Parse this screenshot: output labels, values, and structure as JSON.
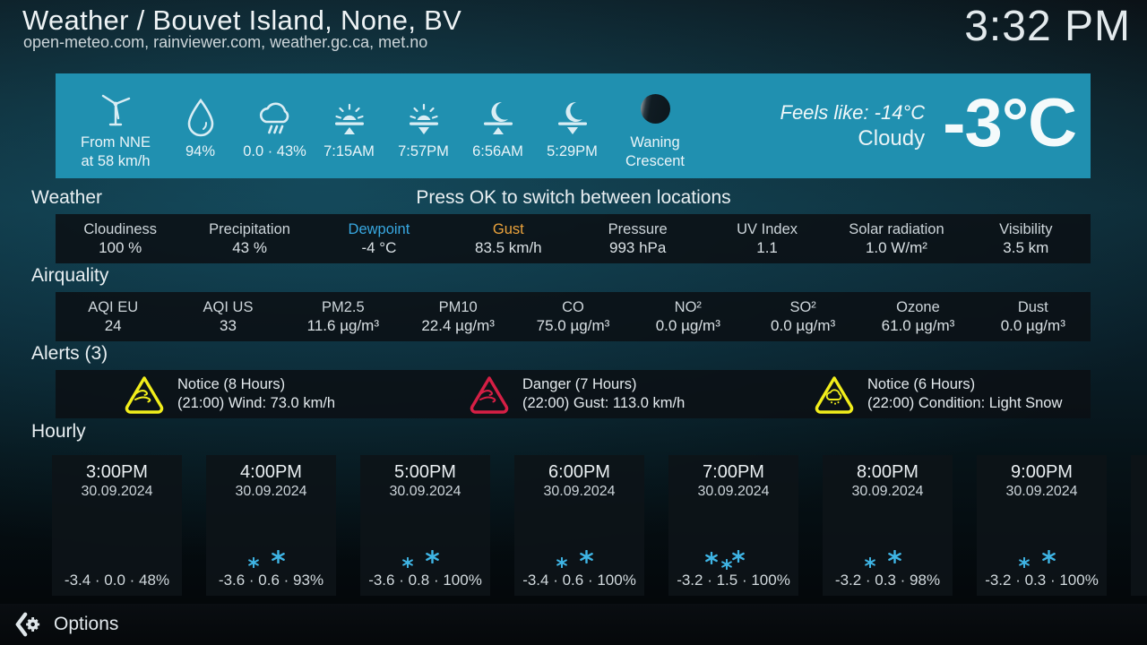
{
  "header": {
    "title": "Weather / Bouvet Island, None, BV",
    "subtitle": "open-meteo.com, rainviewer.com, weather.gc.ca, met.no",
    "clock": "3:32 PM"
  },
  "current": {
    "items": [
      {
        "icon": "wind-turbine-icon",
        "label": "From NNE\nat 58 km/h",
        "wide": true
      },
      {
        "icon": "humidity-drop-icon",
        "label": "94%"
      },
      {
        "icon": "rain-cloud-icon",
        "label": "0.0 · 43%"
      },
      {
        "icon": "sunrise-icon",
        "label": "7:15AM"
      },
      {
        "icon": "sunset-icon",
        "label": "7:57PM"
      },
      {
        "icon": "moonrise-icon",
        "label": "6:56AM"
      },
      {
        "icon": "moonset-icon",
        "label": "5:29PM"
      },
      {
        "icon": "moon-phase-icon",
        "label": "Waning\nCrescent",
        "moon": true
      }
    ],
    "feels_like": "Feels like: -14°C",
    "condition": "Cloudy",
    "temperature": "-3°C"
  },
  "weather_section": {
    "heading": "Weather",
    "hint": "Press OK to switch between locations",
    "stats": [
      {
        "label": "Cloudiness",
        "value": "100 %"
      },
      {
        "label": "Precipitation",
        "value": "43 %"
      },
      {
        "label": "Dewpoint",
        "value": "-4 °C",
        "label_color": "#38a8e1"
      },
      {
        "label": "Gust",
        "value": "83.5 km/h",
        "label_color": "#eca33c"
      },
      {
        "label": "Pressure",
        "value": "993 hPa"
      },
      {
        "label": "UV Index",
        "value": "1.1"
      },
      {
        "label": "Solar radiation",
        "value": "1.0 W/m²"
      },
      {
        "label": "Visibility",
        "value": "3.5 km"
      }
    ]
  },
  "airquality_section": {
    "heading": "Airquality",
    "stats": [
      {
        "label": "AQI EU",
        "value": "24"
      },
      {
        "label": "AQI US",
        "value": "33"
      },
      {
        "label": "PM2.5",
        "value": "11.6 µg/m³"
      },
      {
        "label": "PM10",
        "value": "22.4 µg/m³"
      },
      {
        "label": "CO",
        "value": "75.0 µg/m³"
      },
      {
        "label": "NO²",
        "value": "0.0 µg/m³"
      },
      {
        "label": "SO²",
        "value": "0.0 µg/m³"
      },
      {
        "label": "Ozone",
        "value": "61.0 µg/m³"
      },
      {
        "label": "Dust",
        "value": "0.0 µg/m³"
      }
    ]
  },
  "alerts_section": {
    "heading": "Alerts (3)",
    "alerts": [
      {
        "icon": "wind-warning-icon",
        "color": "#f2ee1b",
        "line1": "Notice (8 Hours)",
        "line2": "(21:00) Wind: 73.0 km/h"
      },
      {
        "icon": "wind-warning-icon",
        "color": "#d51f45",
        "line1": "Danger (7 Hours)",
        "line2": "(22:00) Gust: 113.0 km/h"
      },
      {
        "icon": "snow-warning-icon",
        "color": "#f2ee1b",
        "line1": "Notice (6 Hours)",
        "line2": "(22:00) Condition: Light Snow"
      }
    ]
  },
  "hourly_section": {
    "heading": "Hourly",
    "cards": [
      {
        "time": "3:00PM",
        "date": "30.09.2024",
        "snow": 0,
        "summary": "-3.4 · 0.0 · 48%"
      },
      {
        "time": "4:00PM",
        "date": "30.09.2024",
        "snow": 2,
        "summary": "-3.6 · 0.6 · 93%"
      },
      {
        "time": "5:00PM",
        "date": "30.09.2024",
        "snow": 2,
        "summary": "-3.6 · 0.8 · 100%"
      },
      {
        "time": "6:00PM",
        "date": "30.09.2024",
        "snow": 2,
        "summary": "-3.4 · 0.6 · 100%"
      },
      {
        "time": "7:00PM",
        "date": "30.09.2024",
        "snow": 3,
        "summary": "-3.2 · 1.5 · 100%"
      },
      {
        "time": "8:00PM",
        "date": "30.09.2024",
        "snow": 2,
        "summary": "-3.2 · 0.3 · 98%"
      },
      {
        "time": "9:00PM",
        "date": "30.09.2024",
        "snow": 2,
        "summary": "-3.2 · 0.3 · 100%"
      }
    ]
  },
  "footer": {
    "options_label": "Options"
  },
  "colors": {
    "accent_teal": "#2090b0",
    "alert_notice": "#f2ee1b",
    "alert_danger": "#d51f45",
    "dewpoint_label": "#38a8e1",
    "gust_label": "#eca33c",
    "snowflake": "#3fb5e5"
  }
}
